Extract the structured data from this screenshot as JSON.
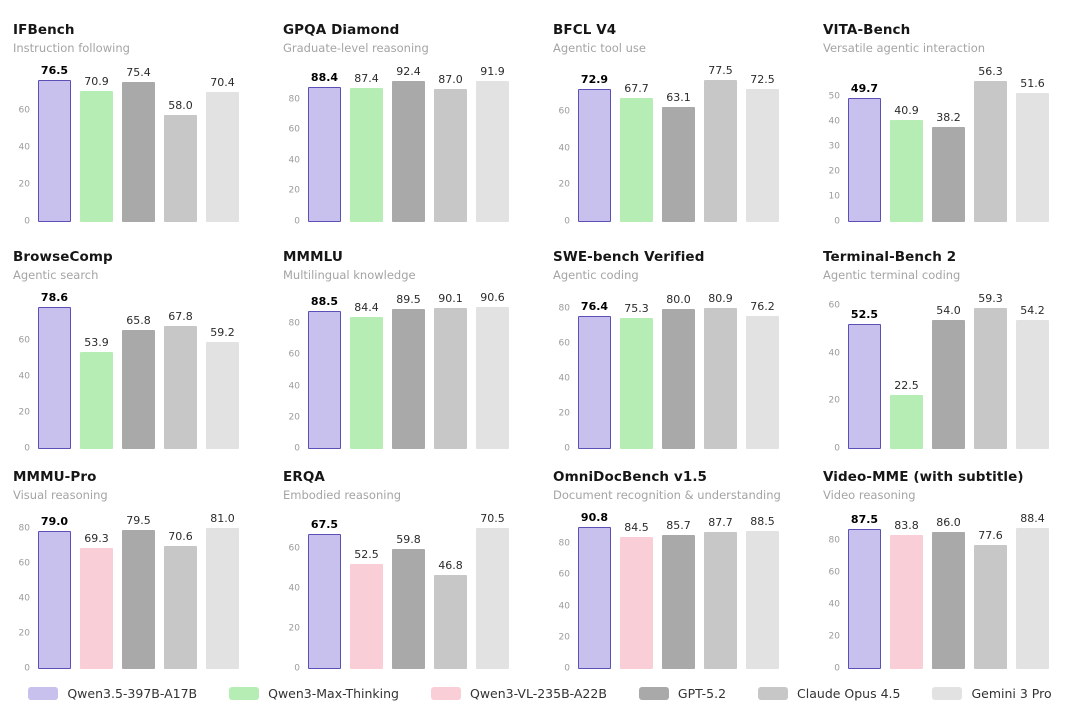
{
  "page": {
    "background": "#ffffff"
  },
  "models": {
    "qwen35": {
      "label": "Qwen3.5-397B-A17B",
      "color": "#c8c1ee",
      "border": "#5a50b5",
      "bold_label": true
    },
    "qwen3max": {
      "label": "Qwen3-Max-Thinking",
      "color": "#b5edb5"
    },
    "qwen3vl": {
      "label": "Qwen3-VL-235B-A22B",
      "color": "#f9ced6"
    },
    "gpt52": {
      "label": "GPT-5.2",
      "color": "#a9a9a9"
    },
    "claude": {
      "label": "Claude Opus 4.5",
      "color": "#c7c7c7"
    },
    "gemini": {
      "label": "Gemini 3 Pro",
      "color": "#e2e2e2"
    }
  },
  "legend_order": [
    "qwen35",
    "qwen3max",
    "qwen3vl",
    "gpt52",
    "claude",
    "gemini"
  ],
  "chart_data": [
    {
      "type": "bar",
      "title": "IFBench",
      "subtitle": "Instruction following",
      "series": [
        "qwen35",
        "qwen3max",
        "gpt52",
        "claude",
        "gemini"
      ],
      "values": [
        76.5,
        70.9,
        75.4,
        58.0,
        70.4
      ],
      "yticks": [
        0,
        20,
        40,
        60
      ],
      "ylim": [
        0,
        81
      ]
    },
    {
      "type": "bar",
      "title": "GPQA Diamond",
      "subtitle": "Graduate-level reasoning",
      "series": [
        "qwen35",
        "qwen3max",
        "gpt52",
        "claude",
        "gemini"
      ],
      "values": [
        88.4,
        87.4,
        92.4,
        87.0,
        91.9
      ],
      "yticks": [
        0,
        20,
        40,
        60,
        80
      ],
      "ylim": [
        0,
        98
      ]
    },
    {
      "type": "bar",
      "title": "BFCL V4",
      "subtitle": "Agentic tool use",
      "series": [
        "qwen35",
        "qwen3max",
        "gpt52",
        "claude",
        "gemini"
      ],
      "values": [
        72.9,
        67.7,
        63.1,
        77.5,
        72.5
      ],
      "yticks": [
        0,
        20,
        40,
        60
      ],
      "ylim": [
        0,
        82
      ]
    },
    {
      "type": "bar",
      "title": "VITA-Bench",
      "subtitle": "Versatile agentic interaction",
      "series": [
        "qwen35",
        "qwen3max",
        "gpt52",
        "claude",
        "gemini"
      ],
      "values": [
        49.7,
        40.9,
        38.2,
        56.3,
        51.6
      ],
      "yticks": [
        0,
        10,
        20,
        30,
        40,
        50
      ],
      "ylim": [
        0,
        60
      ]
    },
    {
      "type": "bar",
      "title": "BrowseComp",
      "subtitle": "Agentic search",
      "series": [
        "qwen35",
        "qwen3max",
        "gpt52",
        "claude",
        "gemini"
      ],
      "values": [
        78.6,
        53.9,
        65.8,
        67.8,
        59.2
      ],
      "yticks": [
        0,
        20,
        40,
        60
      ],
      "ylim": [
        0,
        83
      ]
    },
    {
      "type": "bar",
      "title": "MMMLU",
      "subtitle": "Multilingual knowledge",
      "series": [
        "qwen35",
        "qwen3max",
        "gpt52",
        "claude",
        "gemini"
      ],
      "values": [
        88.5,
        84.4,
        89.5,
        90.1,
        90.6
      ],
      "yticks": [
        0,
        20,
        40,
        60,
        80
      ],
      "ylim": [
        0,
        96
      ]
    },
    {
      "type": "bar",
      "title": "SWE-bench Verified",
      "subtitle": "Agentic coding",
      "series": [
        "qwen35",
        "qwen3max",
        "gpt52",
        "claude",
        "gemini"
      ],
      "values": [
        76.4,
        75.3,
        80.0,
        80.9,
        76.2
      ],
      "yticks": [
        0,
        20,
        40,
        60,
        80
      ],
      "ylim": [
        0,
        86
      ]
    },
    {
      "type": "bar",
      "title": "Terminal-Bench 2",
      "subtitle": "Agentic terminal coding",
      "series": [
        "qwen35",
        "qwen3max",
        "gpt52",
        "claude",
        "gemini"
      ],
      "values": [
        52.5,
        22.5,
        54.0,
        59.3,
        54.2
      ],
      "yticks": [
        0,
        20,
        40,
        60
      ],
      "ylim": [
        0,
        63
      ]
    },
    {
      "type": "bar",
      "title": "MMMU-Pro",
      "subtitle": "Visual reasoning",
      "series": [
        "qwen35",
        "qwen3vl",
        "gpt52",
        "claude",
        "gemini"
      ],
      "values": [
        79.0,
        69.3,
        79.5,
        70.6,
        81.0
      ],
      "yticks": [
        0,
        20,
        40,
        60,
        80
      ],
      "ylim": [
        0,
        86
      ]
    },
    {
      "type": "bar",
      "title": "ERQA",
      "subtitle": "Embodied reasoning",
      "series": [
        "qwen35",
        "qwen3vl",
        "gpt52",
        "claude",
        "gemini"
      ],
      "values": [
        67.5,
        52.5,
        59.8,
        46.8,
        70.5
      ],
      "yticks": [
        0,
        20,
        40,
        60
      ],
      "ylim": [
        0,
        75
      ]
    },
    {
      "type": "bar",
      "title": "OmniDocBench v1.5",
      "subtitle": "Document recognition & understanding",
      "series": [
        "qwen35",
        "qwen3vl",
        "gpt52",
        "claude",
        "gemini"
      ],
      "values": [
        90.8,
        84.5,
        85.7,
        87.7,
        88.5
      ],
      "yticks": [
        0,
        20,
        40,
        60,
        80
      ],
      "ylim": [
        0,
        96
      ]
    },
    {
      "type": "bar",
      "title": "Video-MME (with subtitle)",
      "subtitle": "Video reasoning",
      "series": [
        "qwen35",
        "qwen3vl",
        "gpt52",
        "claude",
        "gemini"
      ],
      "values": [
        87.5,
        83.8,
        86.0,
        77.6,
        88.4
      ],
      "yticks": [
        0,
        20,
        40,
        60,
        80
      ],
      "ylim": [
        0,
        94
      ]
    }
  ]
}
